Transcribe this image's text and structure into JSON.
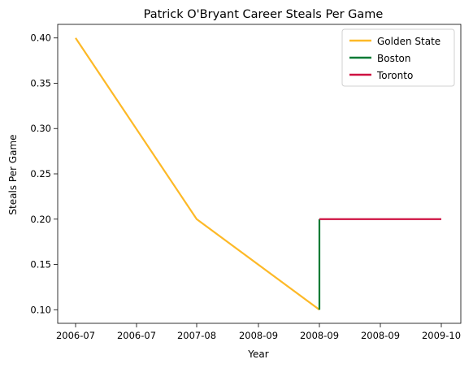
{
  "chart_data": {
    "type": "line",
    "title": "Patrick O'Bryant Career Steals Per Game",
    "xlabel": "Year",
    "ylabel": "Steals Per Game",
    "x_ticks": [
      "2006-07",
      "2006-07",
      "2007-08",
      "2008-09",
      "2008-09",
      "2008-09",
      "2009-10"
    ],
    "y_ticks": [
      "0.10",
      "0.15",
      "0.20",
      "0.25",
      "0.30",
      "0.35",
      "0.40"
    ],
    "ylim": [
      0.085,
      0.415
    ],
    "grid": false,
    "legend_position": "top-right",
    "series": [
      {
        "name": "Golden State",
        "color": "#FDB927",
        "points": [
          {
            "x": "2006-07",
            "y": 0.4
          },
          {
            "x": "2007-08",
            "y": 0.2
          },
          {
            "x": "2008-09",
            "y": 0.1
          }
        ]
      },
      {
        "name": "Boston",
        "color": "#007A33",
        "points": [
          {
            "x": "2008-09",
            "y": 0.1
          },
          {
            "x": "2008-09",
            "y": 0.2
          }
        ]
      },
      {
        "name": "Toronto",
        "color": "#CE1141",
        "points": [
          {
            "x": "2008-09",
            "y": 0.2
          },
          {
            "x": "2009-10",
            "y": 0.2
          }
        ]
      }
    ]
  }
}
